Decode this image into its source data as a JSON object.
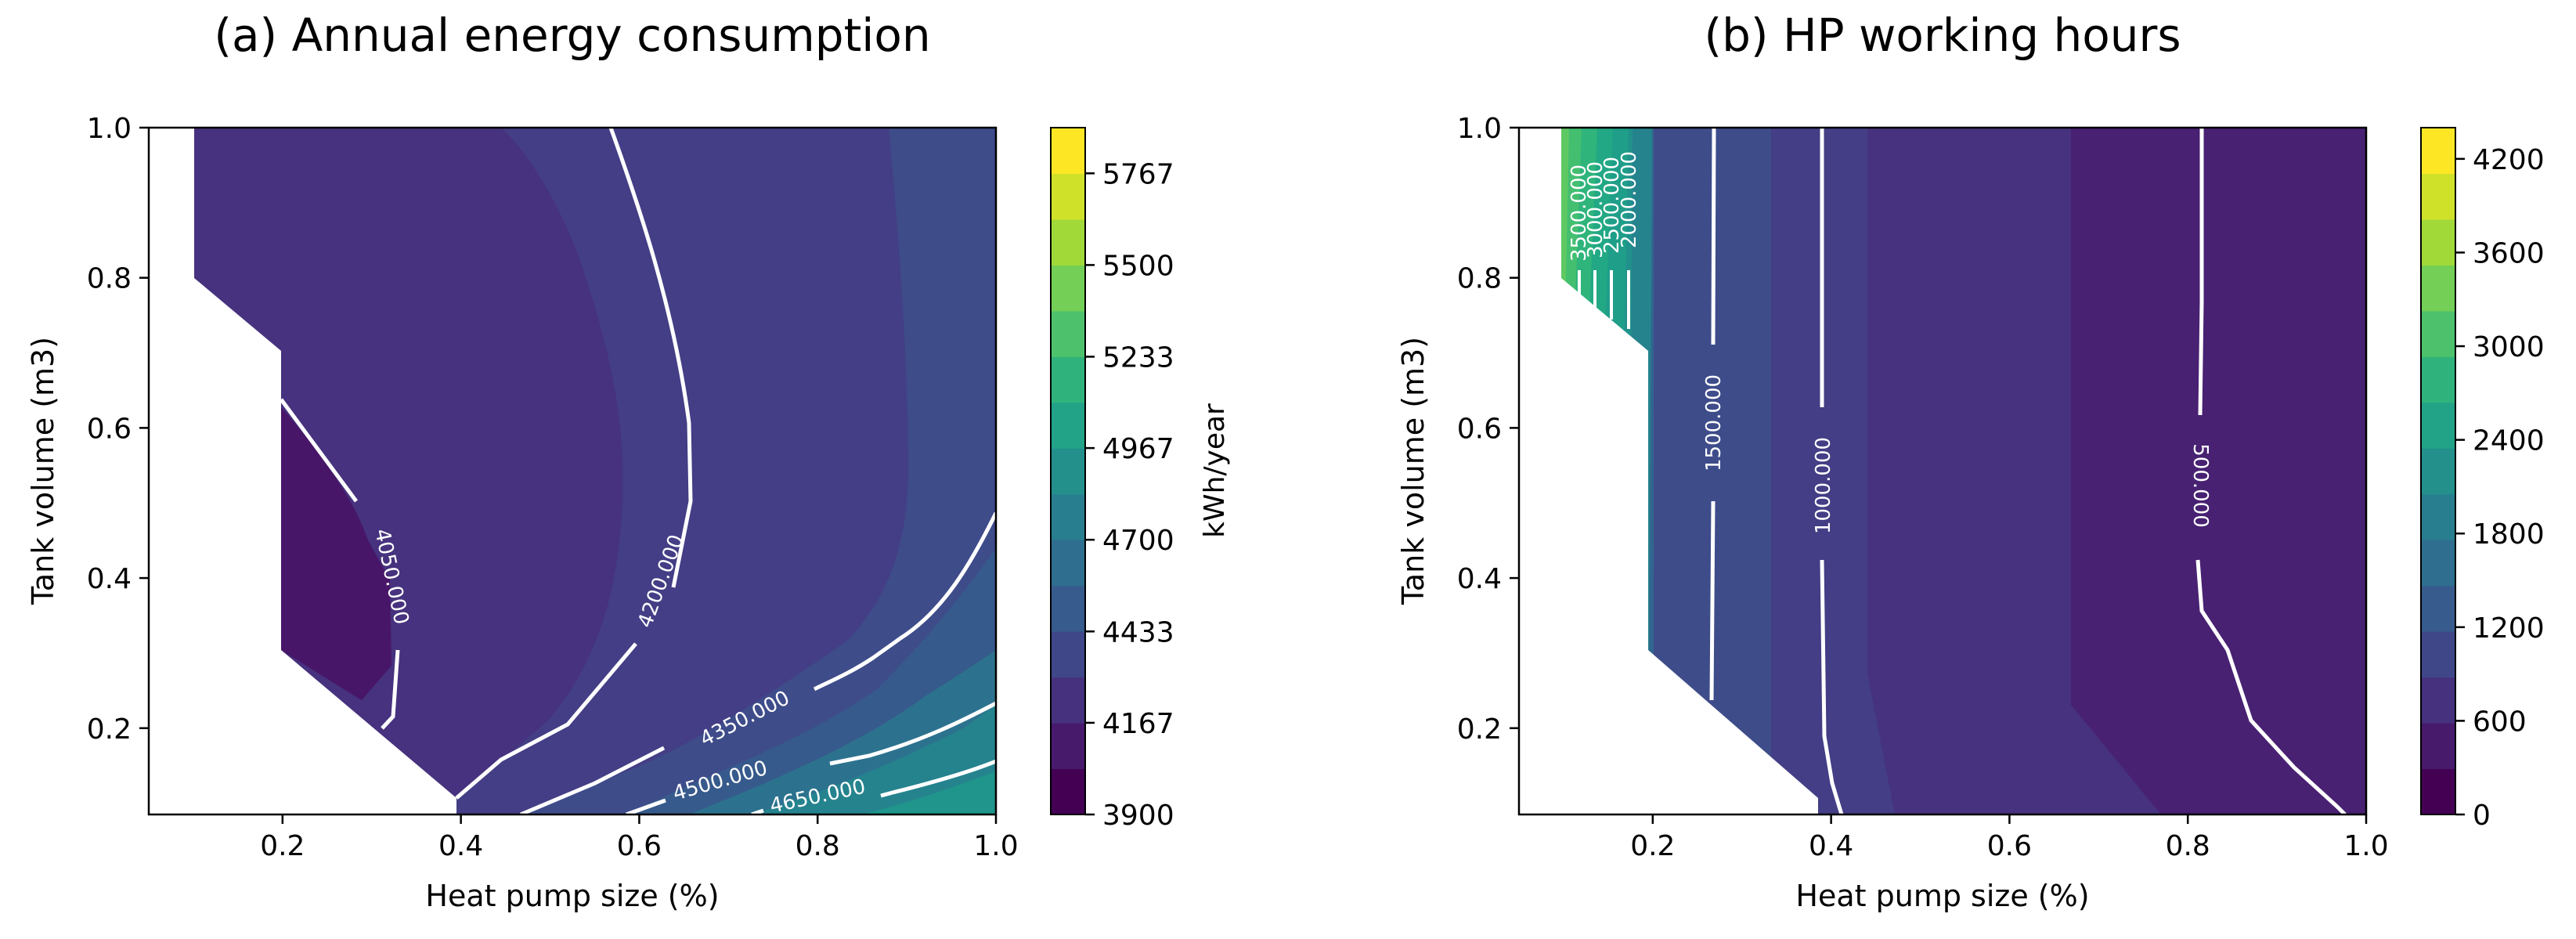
{
  "chart_data": [
    {
      "type": "contourf",
      "title": "(a) Annual energy consumption",
      "xlabel": "Heat pump size (%)",
      "ylabel": "Tank volume (m3)",
      "xlim": [
        0.05,
        1.0
      ],
      "ylim": [
        0.085,
        1.0
      ],
      "xticks": [
        "0.2",
        "0.4",
        "0.6",
        "0.8",
        "1.0"
      ],
      "yticks": [
        "0.2",
        "0.4",
        "0.6",
        "0.8",
        "1.0"
      ],
      "colorbar": {
        "label": "kWh/year",
        "range": [
          3900,
          5900
        ],
        "tick_values": [
          3900,
          4167,
          4433,
          4700,
          4967,
          5233,
          5500,
          5767
        ],
        "tick_labels": [
          "3900",
          "4167",
          "4433",
          "4700",
          "4967",
          "5233",
          "5500",
          "5767"
        ],
        "levels": 15,
        "colormap": "viridis"
      },
      "missing_region": "low heat pump size with small tank (no data)",
      "contour_lines": [
        {
          "value": 4050,
          "label": "4050.000"
        },
        {
          "value": 4200,
          "label": "4200.000"
        },
        {
          "value": 4350,
          "label": "4350.000"
        },
        {
          "value": 4500,
          "label": "4500.000"
        },
        {
          "value": 4650,
          "label": "4650.000"
        }
      ]
    },
    {
      "type": "contourf",
      "title": "(b) HP working hours",
      "xlabel": "Heat pump size (%)",
      "ylabel": "Tank volume (m3)",
      "xlim": [
        0.05,
        1.0
      ],
      "ylim": [
        0.085,
        1.0
      ],
      "xticks": [
        "0.2",
        "0.4",
        "0.6",
        "0.8",
        "1.0"
      ],
      "yticks": [
        "0.2",
        "0.4",
        "0.6",
        "0.8",
        "1.0"
      ],
      "colorbar": {
        "label": "",
        "range": [
          0,
          4400
        ],
        "tick_values": [
          0,
          600,
          1200,
          1800,
          2400,
          3000,
          3600,
          4200
        ],
        "tick_labels": [
          "0",
          "600",
          "1200",
          "1800",
          "2400",
          "3000",
          "3600",
          "4200"
        ],
        "levels": 15,
        "colormap": "viridis"
      },
      "missing_region": "low heat pump size with small tank (no data)",
      "contour_lines": [
        {
          "value": 500,
          "label": "500.000"
        },
        {
          "value": 1000,
          "label": "1000.000"
        },
        {
          "value": 1500,
          "label": "1500.000"
        },
        {
          "value": 2000,
          "label": "2000.000"
        },
        {
          "value": 2500,
          "label": "2500.000"
        },
        {
          "value": 3000,
          "label": "3000.000"
        },
        {
          "value": 3500,
          "label": "3500.000"
        }
      ]
    }
  ]
}
